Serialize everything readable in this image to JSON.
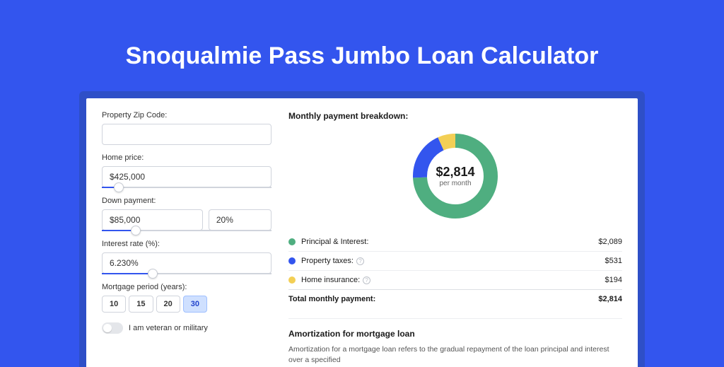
{
  "page_title": "Snoqualmie Pass Jumbo Loan Calculator",
  "colors": {
    "page_bg": "#3355ee",
    "panel_wrap_bg": "#2e4fc7",
    "panel_bg": "#ffffff",
    "accent": "#3355ee"
  },
  "form": {
    "zip": {
      "label": "Property Zip Code:",
      "value": ""
    },
    "home_price": {
      "label": "Home price:",
      "value": "$425,000",
      "slider_pct": 10
    },
    "down_payment": {
      "label": "Down payment:",
      "value": "$85,000",
      "pct": "20%",
      "slider_pct": 20
    },
    "interest_rate": {
      "label": "Interest rate (%):",
      "value": "6.230%",
      "slider_pct": 30
    },
    "mortgage_period": {
      "label": "Mortgage period (years):",
      "options": [
        "10",
        "15",
        "20",
        "30"
      ],
      "active": "30"
    },
    "veteran": {
      "label": "I am veteran or military",
      "checked": false
    }
  },
  "breakdown": {
    "heading": "Monthly payment breakdown:",
    "center_amount": "$2,814",
    "center_sub": "per month",
    "donut": {
      "series": [
        {
          "key": "principal_interest",
          "value": 2089,
          "color": "#4fae80"
        },
        {
          "key": "property_taxes",
          "value": 531,
          "color": "#3355ee"
        },
        {
          "key": "home_insurance",
          "value": 194,
          "color": "#f3cf55"
        }
      ],
      "stroke_width": 20,
      "radius": 50
    },
    "rows": [
      {
        "label": "Principal & Interest:",
        "value": "$2,089",
        "color": "#4fae80",
        "info": false
      },
      {
        "label": "Property taxes:",
        "value": "$531",
        "color": "#3355ee",
        "info": true
      },
      {
        "label": "Home insurance:",
        "value": "$194",
        "color": "#f3cf55",
        "info": true
      }
    ],
    "total": {
      "label": "Total monthly payment:",
      "value": "$2,814"
    }
  },
  "amortization": {
    "heading": "Amortization for mortgage loan",
    "text": "Amortization for a mortgage loan refers to the gradual repayment of the loan principal and interest over a specified"
  }
}
